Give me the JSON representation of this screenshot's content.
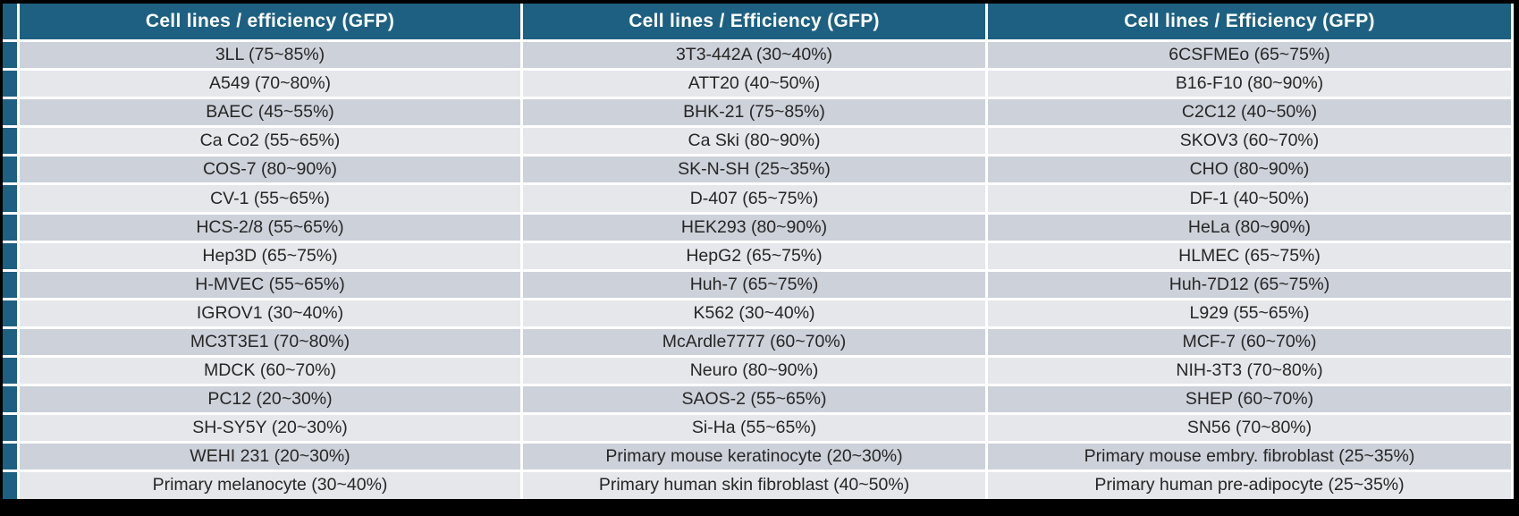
{
  "colors": {
    "header_bg": "#1E6081",
    "row_dark": "#CDD1DA",
    "row_light": "#E5E7EB",
    "header_text": "#FFFFFF",
    "cell_text": "#262626",
    "gap": "#FFFFFF",
    "frame_border": "#000000"
  },
  "table": {
    "columns": [
      {
        "header": "Cell lines / efficiency (GFP)",
        "rows": [
          "3LL (75~85%)",
          "A549 (70~80%)",
          "BAEC (45~55%)",
          "Ca Co2 (55~65%)",
          "COS-7 (80~90%)",
          "CV-1 (55~65%)",
          "HCS-2/8 (55~65%)",
          "Hep3D (65~75%)",
          "H-MVEC (55~65%)",
          "IGROV1 (30~40%)",
          "MC3T3E1 (70~80%)",
          "MDCK (60~70%)",
          "PC12 (20~30%)",
          "SH-SY5Y (20~30%)",
          "WEHI 231 (20~30%)",
          "Primary melanocyte (30~40%)"
        ]
      },
      {
        "header": "Cell lines / Efficiency (GFP)",
        "rows": [
          "3T3-442A (30~40%)",
          "ATT20 (40~50%)",
          "BHK-21 (75~85%)",
          "Ca Ski (80~90%)",
          "SK-N-SH (25~35%)",
          "D-407 (65~75%)",
          "HEK293 (80~90%)",
          "HepG2 (65~75%)",
          "Huh-7 (65~75%)",
          "K562 (30~40%)",
          "McArdle7777 (60~70%)",
          "Neuro (80~90%)",
          "SAOS-2 (55~65%)",
          "Si-Ha (55~65%)",
          "Primary mouse keratinocyte (20~30%)",
          "Primary human skin fibroblast (40~50%)"
        ]
      },
      {
        "header": "Cell lines / Efficiency (GFP)",
        "rows": [
          "6CSFMEo (65~75%)",
          "B16-F10 (80~90%)",
          "C2C12 (40~50%)",
          "SKOV3 (60~70%)",
          "CHO (80~90%)",
          "DF-1 (40~50%)",
          "HeLa (80~90%)",
          "HLMEC (65~75%)",
          "Huh-7D12 (65~75%)",
          "L929 (55~65%)",
          "MCF-7 (60~70%)",
          "NIH-3T3 (70~80%)",
          "SHEP (60~70%)",
          "SN56 (70~80%)",
          "Primary mouse embry. fibroblast (25~35%)",
          "Primary human pre-adipocyte (25~35%)"
        ]
      }
    ]
  }
}
